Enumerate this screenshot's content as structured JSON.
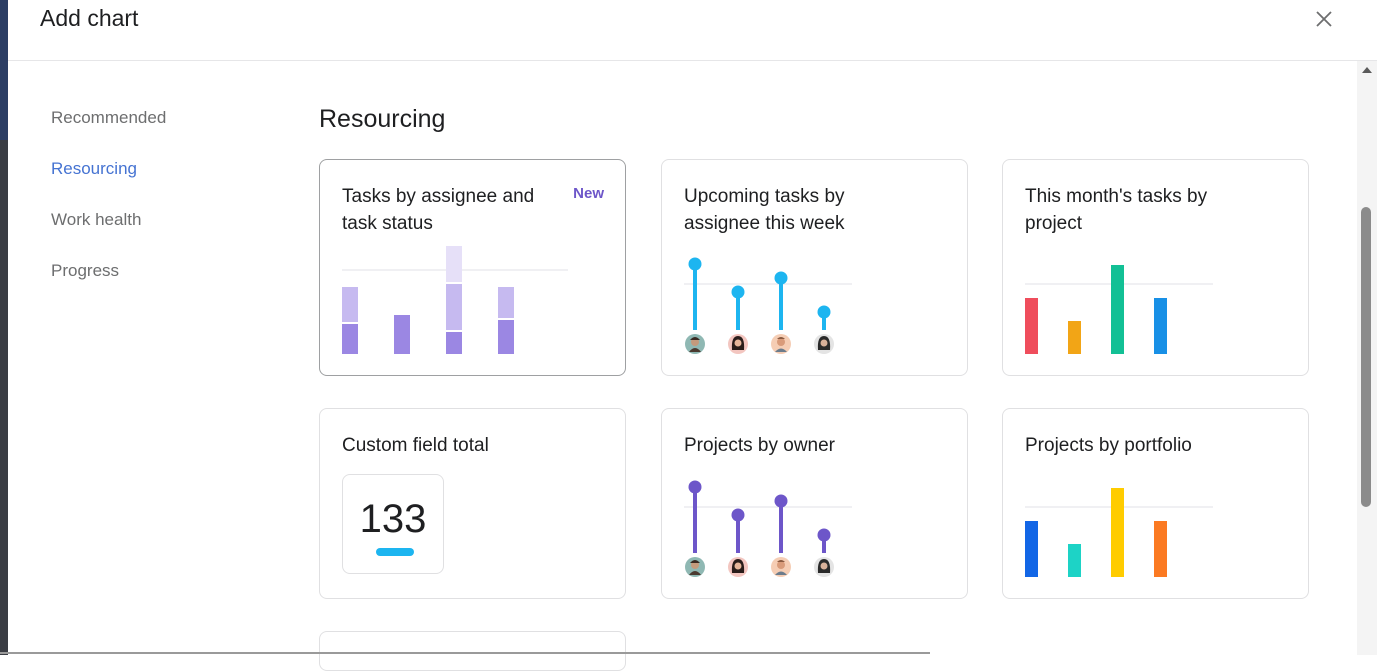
{
  "dialog": {
    "title": "Add chart"
  },
  "sidebar": {
    "items": [
      {
        "label": "Recommended",
        "active": false
      },
      {
        "label": "Resourcing",
        "active": true
      },
      {
        "label": "Work health",
        "active": false
      },
      {
        "label": "Progress",
        "active": false
      }
    ]
  },
  "main": {
    "section_title": "Resourcing",
    "cards": [
      {
        "title": "Tasks by assignee and task status",
        "badge": "New",
        "preview": "stacked-bar"
      },
      {
        "title": "Upcoming tasks by assignee this week",
        "preview": "lollipop-blue"
      },
      {
        "title": "This month's tasks by project",
        "preview": "bar-colored"
      },
      {
        "title": "Custom field total",
        "preview": "metric",
        "metric_value": "133"
      },
      {
        "title": "Projects by owner",
        "preview": "lollipop-purple"
      },
      {
        "title": "Projects by portfolio",
        "preview": "bar-colored-2"
      },
      {
        "title": "",
        "preview": "partial"
      }
    ]
  },
  "colors": {
    "accent": "#4573d2",
    "badge": "#6d56c9",
    "lollipop_blue": "#1db5f0",
    "lollipop_purple": "#6d56c9",
    "stack_dark": "#9b87e3",
    "stack_mid": "#c6baf0",
    "stack_light": "#e6e0f8",
    "bars_1": [
      "#ef4d5c",
      "#f2a516",
      "#12c095",
      "#1890e6"
    ],
    "bars_2": [
      "#1266e6",
      "#1dd3c6",
      "#ffcc00",
      "#fb7a22"
    ]
  },
  "icons": {
    "close": "close-icon",
    "avatars": [
      "avatar",
      "avatar",
      "avatar",
      "avatar"
    ]
  }
}
